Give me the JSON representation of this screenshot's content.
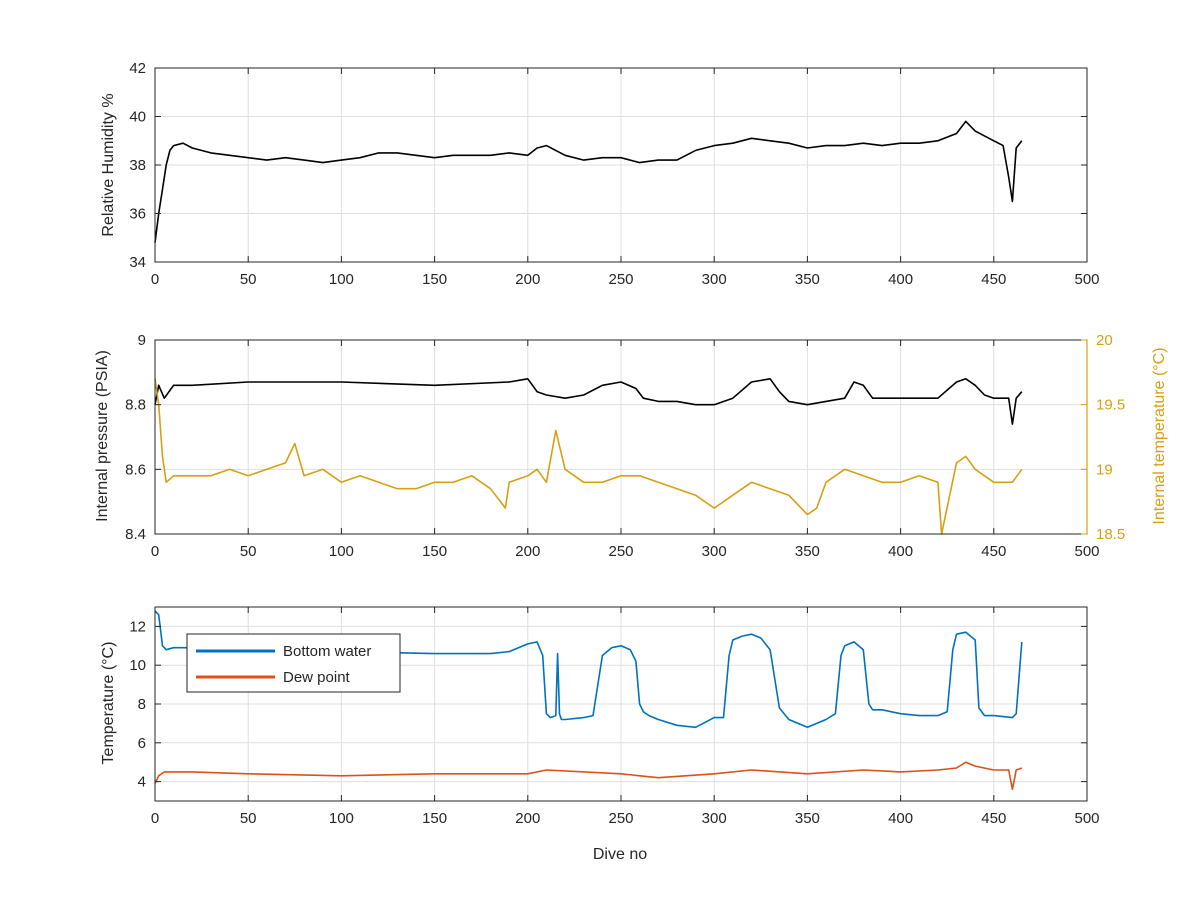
{
  "chart_data": [
    {
      "type": "line",
      "title": "",
      "xlabel": "",
      "ylabel": "Relative Humidity %",
      "xlim": [
        0,
        500
      ],
      "ylim": [
        34,
        42
      ],
      "xticks": [
        0,
        50,
        100,
        150,
        200,
        250,
        300,
        350,
        400,
        450,
        500
      ],
      "yticks": [
        34,
        36,
        38,
        40,
        42
      ],
      "grid": true,
      "series": [
        {
          "color": "#000000",
          "x": [
            0,
            2,
            4,
            6,
            8,
            10,
            15,
            20,
            30,
            40,
            50,
            60,
            70,
            80,
            90,
            100,
            110,
            120,
            130,
            140,
            150,
            160,
            170,
            180,
            190,
            200,
            205,
            210,
            220,
            230,
            240,
            250,
            260,
            270,
            280,
            290,
            300,
            310,
            320,
            330,
            340,
            350,
            360,
            370,
            380,
            390,
            400,
            410,
            420,
            430,
            435,
            440,
            450,
            455,
            458,
            460,
            462,
            465
          ],
          "y": [
            34.8,
            36.0,
            37.0,
            38.0,
            38.6,
            38.8,
            38.9,
            38.7,
            38.5,
            38.4,
            38.3,
            38.2,
            38.3,
            38.2,
            38.1,
            38.2,
            38.3,
            38.5,
            38.5,
            38.4,
            38.3,
            38.4,
            38.4,
            38.4,
            38.5,
            38.4,
            38.7,
            38.8,
            38.4,
            38.2,
            38.3,
            38.3,
            38.1,
            38.2,
            38.2,
            38.6,
            38.8,
            38.9,
            39.1,
            39.0,
            38.9,
            38.7,
            38.8,
            38.8,
            38.9,
            38.8,
            38.9,
            38.9,
            39.0,
            39.3,
            39.8,
            39.4,
            39.0,
            38.8,
            37.5,
            36.5,
            38.7,
            39.0
          ]
        }
      ]
    },
    {
      "type": "line",
      "title": "",
      "xlabel": "",
      "ylabel": "Internal pressure (PSIA)",
      "ylabel_right": "Internal temperature (°C)",
      "xlim": [
        0,
        500
      ],
      "ylim": [
        8.4,
        9.0
      ],
      "ylim_right": [
        18.5,
        20.0
      ],
      "xticks": [
        0,
        50,
        100,
        150,
        200,
        250,
        300,
        350,
        400,
        450,
        500
      ],
      "yticks": [
        8.4,
        8.6,
        8.8,
        9.0
      ],
      "yticklabels": [
        "8.4",
        "8.6",
        "8.8",
        "9"
      ],
      "yticks_right": [
        18.5,
        19.0,
        19.5,
        20.0
      ],
      "yticklabels_right": [
        "18.5",
        "19",
        "19.5",
        "20"
      ],
      "grid": true,
      "series": [
        {
          "axis": "left",
          "color": "#000000",
          "x": [
            0,
            2,
            5,
            10,
            20,
            50,
            100,
            150,
            190,
            200,
            205,
            210,
            220,
            230,
            240,
            250,
            258,
            262,
            270,
            280,
            290,
            300,
            310,
            320,
            330,
            335,
            340,
            350,
            360,
            370,
            375,
            380,
            385,
            390,
            400,
            420,
            430,
            435,
            440,
            445,
            450,
            458,
            460,
            462,
            465
          ],
          "y": [
            8.8,
            8.86,
            8.82,
            8.86,
            8.86,
            8.87,
            8.87,
            8.86,
            8.87,
            8.88,
            8.84,
            8.83,
            8.82,
            8.83,
            8.86,
            8.87,
            8.85,
            8.82,
            8.81,
            8.81,
            8.8,
            8.8,
            8.82,
            8.87,
            8.88,
            8.84,
            8.81,
            8.8,
            8.81,
            8.82,
            8.87,
            8.86,
            8.82,
            8.82,
            8.82,
            8.82,
            8.87,
            8.88,
            8.86,
            8.83,
            8.82,
            8.82,
            8.74,
            8.82,
            8.84
          ]
        },
        {
          "axis": "right",
          "color": "#D89F13",
          "x": [
            0,
            2,
            4,
            6,
            10,
            20,
            30,
            40,
            50,
            60,
            70,
            75,
            80,
            90,
            100,
            110,
            120,
            130,
            140,
            150,
            160,
            170,
            180,
            188,
            190,
            200,
            205,
            210,
            215,
            220,
            230,
            240,
            250,
            260,
            270,
            280,
            290,
            300,
            310,
            320,
            330,
            340,
            350,
            355,
            360,
            370,
            380,
            390,
            400,
            410,
            420,
            422,
            430,
            435,
            440,
            450,
            460,
            465
          ],
          "y": [
            19.7,
            19.5,
            19.1,
            18.9,
            18.95,
            18.95,
            18.95,
            19.0,
            18.95,
            19.0,
            19.05,
            19.2,
            18.95,
            19.0,
            18.9,
            18.95,
            18.9,
            18.85,
            18.85,
            18.9,
            18.9,
            18.95,
            18.85,
            18.7,
            18.9,
            18.95,
            19.0,
            18.9,
            19.3,
            19.0,
            18.9,
            18.9,
            18.95,
            18.95,
            18.9,
            18.85,
            18.8,
            18.7,
            18.8,
            18.9,
            18.85,
            18.8,
            18.65,
            18.7,
            18.9,
            19.0,
            18.95,
            18.9,
            18.9,
            18.95,
            18.9,
            18.5,
            19.05,
            19.1,
            19.0,
            18.9,
            18.9,
            19.0
          ]
        }
      ]
    },
    {
      "type": "line",
      "title": "",
      "xlabel": "Dive no",
      "ylabel": "Temperature (°C)",
      "xlim": [
        0,
        500
      ],
      "ylim": [
        3,
        13
      ],
      "xticks": [
        0,
        50,
        100,
        150,
        200,
        250,
        300,
        350,
        400,
        450,
        500
      ],
      "yticks": [
        4,
        6,
        8,
        10,
        12
      ],
      "grid": true,
      "legend_position": "top-left",
      "series": [
        {
          "name": "Bottom water",
          "color": "#0072BD",
          "x": [
            0,
            2,
            4,
            6,
            10,
            20,
            50,
            100,
            150,
            180,
            190,
            200,
            205,
            208,
            210,
            212,
            215,
            216,
            217,
            218,
            220,
            230,
            235,
            240,
            245,
            250,
            255,
            258,
            260,
            262,
            265,
            270,
            280,
            290,
            300,
            305,
            308,
            310,
            315,
            320,
            325,
            330,
            335,
            340,
            350,
            360,
            365,
            368,
            370,
            375,
            380,
            383,
            385,
            390,
            400,
            410,
            420,
            425,
            428,
            430,
            435,
            440,
            442,
            445,
            450,
            460,
            462,
            465
          ],
          "y": [
            12.8,
            12.6,
            11.0,
            10.8,
            10.9,
            10.9,
            10.8,
            10.7,
            10.6,
            10.6,
            10.7,
            11.1,
            11.2,
            10.5,
            7.5,
            7.3,
            7.4,
            10.6,
            7.5,
            7.2,
            7.2,
            7.3,
            7.4,
            10.5,
            10.9,
            11.0,
            10.8,
            10.2,
            8.0,
            7.6,
            7.4,
            7.2,
            6.9,
            6.8,
            7.3,
            7.3,
            10.5,
            11.3,
            11.5,
            11.6,
            11.4,
            10.8,
            7.8,
            7.2,
            6.8,
            7.2,
            7.5,
            10.5,
            11.0,
            11.2,
            10.8,
            8.0,
            7.7,
            7.7,
            7.5,
            7.4,
            7.4,
            7.6,
            10.8,
            11.6,
            11.7,
            11.3,
            7.8,
            7.4,
            7.4,
            7.3,
            7.5,
            11.2
          ]
        },
        {
          "name": "Dew point",
          "color": "#D95319",
          "x": [
            0,
            2,
            5,
            10,
            20,
            50,
            100,
            150,
            200,
            210,
            250,
            270,
            300,
            320,
            350,
            380,
            400,
            420,
            430,
            435,
            440,
            450,
            458,
            460,
            462,
            465
          ],
          "y": [
            3.9,
            4.3,
            4.5,
            4.5,
            4.5,
            4.4,
            4.3,
            4.4,
            4.4,
            4.6,
            4.4,
            4.2,
            4.4,
            4.6,
            4.4,
            4.6,
            4.5,
            4.6,
            4.7,
            5.0,
            4.8,
            4.6,
            4.6,
            3.6,
            4.6,
            4.7
          ]
        }
      ]
    }
  ]
}
